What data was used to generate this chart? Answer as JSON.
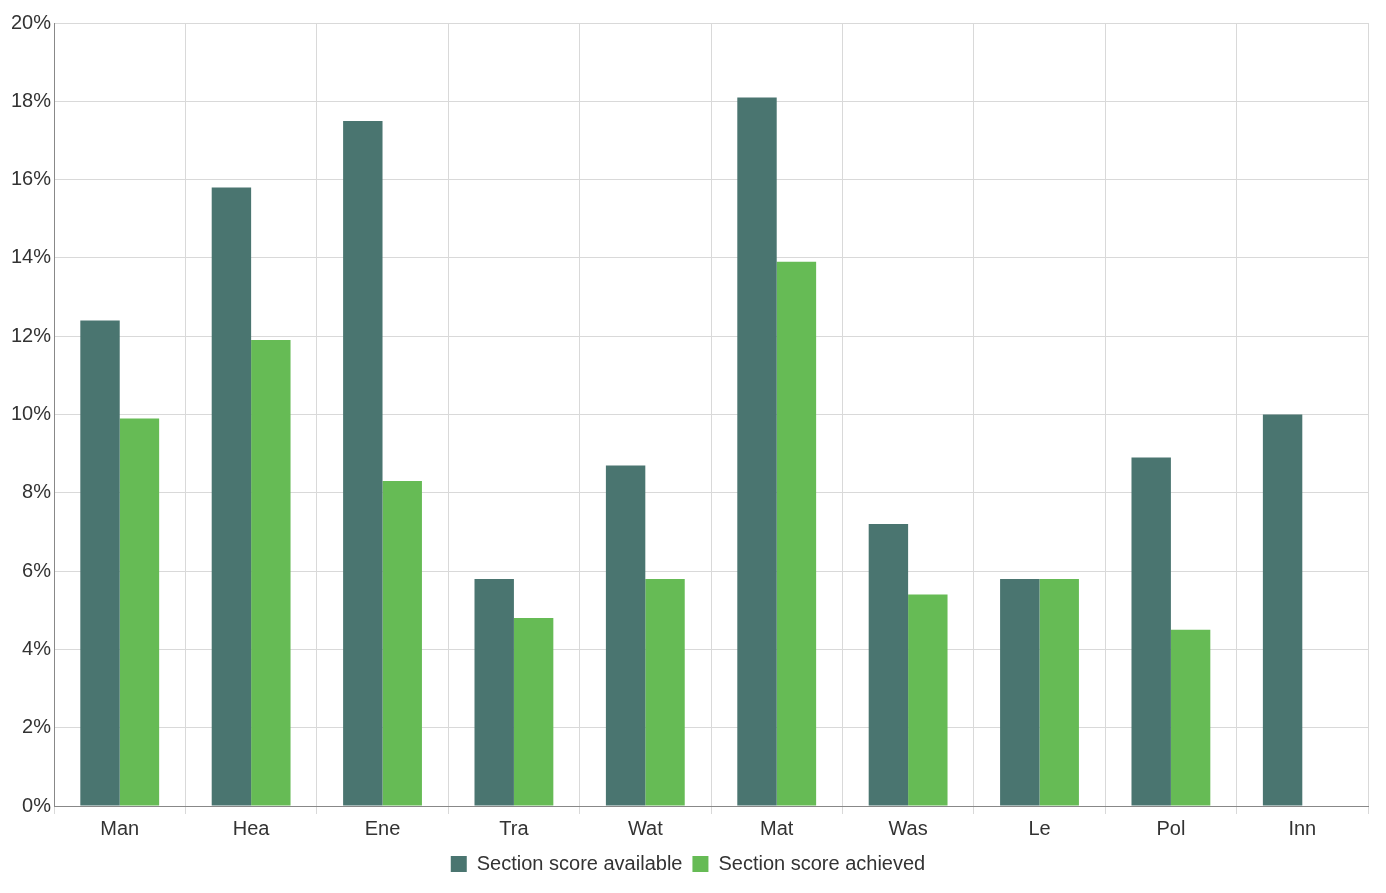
{
  "chart_data": {
    "type": "bar",
    "categories": [
      "Man",
      "Hea",
      "Ene",
      "Tra",
      "Wat",
      "Mat",
      "Was",
      "Le",
      "Pol",
      "Inn"
    ],
    "series": [
      {
        "name": "Section score available",
        "color": "#4a7570",
        "values": [
          12.4,
          15.8,
          17.5,
          5.8,
          8.7,
          18.1,
          7.2,
          5.8,
          8.9,
          10.0
        ]
      },
      {
        "name": "Section score achieved",
        "color": "#66bb55",
        "values": [
          9.9,
          11.9,
          8.3,
          4.8,
          5.8,
          13.9,
          5.4,
          5.8,
          4.5,
          null
        ]
      }
    ],
    "ylim": [
      0,
      20
    ],
    "yticks": [
      {
        "value": 0,
        "label": "0%"
      },
      {
        "value": 2,
        "label": "2%"
      },
      {
        "value": 4,
        "label": "4%"
      },
      {
        "value": 6,
        "label": "6%"
      },
      {
        "value": 8,
        "label": "8%"
      },
      {
        "value": 10,
        "label": "10%"
      },
      {
        "value": 12,
        "label": "12%"
      },
      {
        "value": 14,
        "label": "14%"
      },
      {
        "value": 16,
        "label": "16%"
      },
      {
        "value": 18,
        "label": "18%"
      },
      {
        "value": 20,
        "label": "20%"
      }
    ],
    "grid": true,
    "legend": "bottom"
  }
}
